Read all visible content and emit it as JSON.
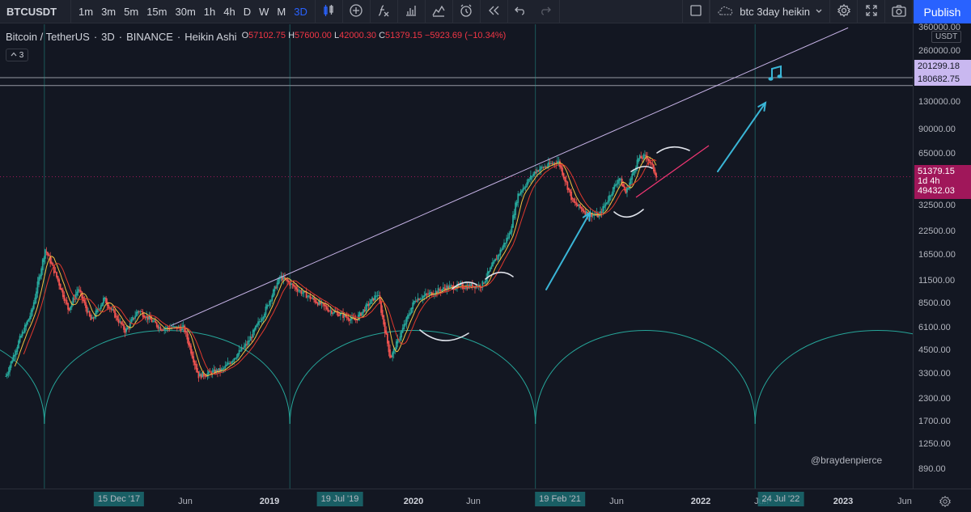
{
  "toolbar": {
    "symbol": "BTCUSDT",
    "intervals": [
      "1m",
      "3m",
      "5m",
      "15m",
      "30m",
      "1h",
      "4h",
      "D",
      "W",
      "M",
      "3D"
    ],
    "active_interval": "3D",
    "layout_name": "btc 3day heikin",
    "publish_label": "Publish",
    "icons": [
      "bar-style-icon",
      "compare-icon",
      "indicators-icon",
      "financials-icon",
      "templates-icon",
      "alert-icon",
      "replay-icon",
      "undo-icon",
      "redo-icon",
      "fullscreen-icon",
      "cloud-layout-icon",
      "settings-icon",
      "expand-icon",
      "snapshot-icon"
    ]
  },
  "legend": {
    "name": "Bitcoin / TetherUS",
    "interval": "3D",
    "exchange": "BINANCE",
    "style": "Heikin Ashi",
    "o_label": "O",
    "o_value": "57102.75",
    "h_label": "H",
    "h_value": "57600.00",
    "l_label": "L",
    "l_value": "42000.30",
    "c_label": "C",
    "c_value": "51379.15",
    "change": "−5923.69 (−10.34%)",
    "study_count": "3"
  },
  "price_axis": {
    "currency": "USDT",
    "labels": [
      "360000.00",
      "260000.00",
      "130000.00",
      "90000.00",
      "65000.00",
      "32500.00",
      "22500.00",
      "16500.00",
      "11500.00",
      "8500.00",
      "6100.00",
      "4500.00",
      "3300.00",
      "2300.00",
      "1700.00",
      "1250.00",
      "890.00"
    ],
    "tag_upper": "201299.18",
    "tag_lower": "180682.75",
    "tag_price": "51379.15",
    "tag_countdown": "1d 4h",
    "tag_ma": "49432.03"
  },
  "time_axis": {
    "labels": [
      "Jun",
      "2019",
      "Jun",
      "2020",
      "Jun",
      "Jun",
      "2022",
      "2023",
      "Jun"
    ],
    "bold_labels": [
      "2019",
      "2020",
      "2022",
      "2023"
    ],
    "tags": [
      "15 Dec '17",
      "19 Jul '19",
      "19 Feb '21",
      "24 Jul '22"
    ]
  },
  "watermark": "@braydenpierce",
  "colors": {
    "background": "#131722",
    "up": "#26a69a",
    "down": "#ef5350",
    "fast_ma": "#f5c242",
    "slow_ma": "#e0382d",
    "trendline": "#c8b4e8",
    "cycle": "#26a69a",
    "arrow": "#3ab5d6",
    "accent": "#2962ff",
    "price_tag": "#a0175a"
  },
  "chart_data": {
    "type": "candlestick",
    "style": "Heikin Ashi",
    "y_scale": "log",
    "ylim": [
      700,
      420000
    ],
    "xlim": [
      "2017-09-01",
      "2023-08-01"
    ],
    "price_path": [
      [
        "2017-09-15",
        3300
      ],
      [
        "2017-10-15",
        5300
      ],
      [
        "2017-11-15",
        8000
      ],
      [
        "2017-12-17",
        19000
      ],
      [
        "2018-01-15",
        12500
      ],
      [
        "2018-02-10",
        8200
      ],
      [
        "2018-03-05",
        11000
      ],
      [
        "2018-04-05",
        7000
      ],
      [
        "2018-05-05",
        9600
      ],
      [
        "2018-06-25",
        6100
      ],
      [
        "2018-07-25",
        8200
      ],
      [
        "2018-09-15",
        6400
      ],
      [
        "2018-11-10",
        6400
      ],
      [
        "2018-12-15",
        3300
      ],
      [
        "2019-02-10",
        3600
      ],
      [
        "2019-04-10",
        5200
      ],
      [
        "2019-05-20",
        8000
      ],
      [
        "2019-06-26",
        13000
      ],
      [
        "2019-08-15",
        10500
      ],
      [
        "2019-10-20",
        8200
      ],
      [
        "2019-12-20",
        7100
      ],
      [
        "2020-02-12",
        10300
      ],
      [
        "2020-03-13",
        4200
      ],
      [
        "2020-05-10",
        9500
      ],
      [
        "2020-07-25",
        11200
      ],
      [
        "2020-10-15",
        11500
      ],
      [
        "2020-12-20",
        23500
      ],
      [
        "2021-01-08",
        40000
      ],
      [
        "2021-02-20",
        56000
      ],
      [
        "2021-04-14",
        64000
      ],
      [
        "2021-05-19",
        36000
      ],
      [
        "2021-06-22",
        31000
      ],
      [
        "2021-07-20",
        30000
      ],
      [
        "2021-09-05",
        51000
      ],
      [
        "2021-09-21",
        41000
      ],
      [
        "2021-10-20",
        66000
      ],
      [
        "2021-11-10",
        68000
      ],
      [
        "2021-12-04",
        51379
      ]
    ],
    "horizontal_levels": [
      201299.18,
      180682.75
    ],
    "current_price": 51379.15,
    "ma_value": 49432.03,
    "cycle_vertical_lines": [
      "2017-12-15",
      "2019-07-19",
      "2021-02-19",
      "2022-07-24"
    ],
    "trendline": [
      [
        "2018-10-10",
        6600
      ],
      [
        "2023-03-01",
        400000
      ]
    ]
  }
}
